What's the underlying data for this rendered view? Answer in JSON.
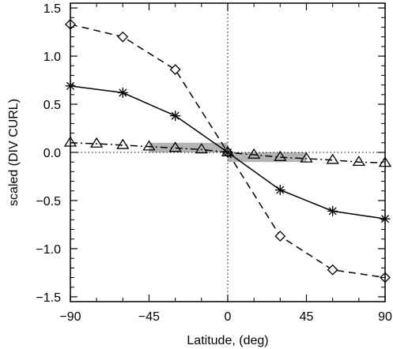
{
  "chart_data": {
    "type": "line",
    "title": "",
    "xlabel": "Latitude, (deg)",
    "ylabel": "scaled (DIV CURL)",
    "xlim": [
      -90,
      90
    ],
    "ylim": [
      -1.55,
      1.55
    ],
    "xticks": [
      -90,
      -45,
      0,
      45,
      90
    ],
    "xtick_labels": [
      "−90",
      "−45",
      "0",
      "45",
      "90"
    ],
    "yticks": [
      -1.5,
      -1.0,
      -0.5,
      0.0,
      0.5,
      1.0,
      1.5
    ],
    "ytick_labels": [
      "−1.5",
      "−1.0",
      "−0.5",
      "0.0",
      "0.5",
      "1.0",
      "1.5"
    ],
    "reference_lines": {
      "y": 0.0,
      "x": 0.0,
      "style": "dotted"
    },
    "shaded_band": {
      "color": "#b4b4b4",
      "segments": [
        {
          "x": [
            -45,
            0
          ],
          "y": [
            0.0,
            0.1
          ]
        },
        {
          "x": [
            0,
            45
          ],
          "y": [
            -0.1,
            0.0
          ]
        }
      ]
    },
    "legend": "none",
    "grid": false,
    "series": [
      {
        "line": "dashed",
        "marker": "diamond",
        "x": [
          -90,
          -60,
          -30,
          0,
          30,
          60,
          90
        ],
        "y": [
          1.33,
          1.2,
          0.86,
          0.0,
          -0.87,
          -1.22,
          -1.3
        ]
      },
      {
        "line": "solid",
        "marker": "asterisk",
        "x": [
          -90,
          -60,
          -30,
          0,
          30,
          60,
          90
        ],
        "y": [
          0.69,
          0.62,
          0.38,
          0.0,
          -0.39,
          -0.61,
          -0.69
        ]
      },
      {
        "line": "dash-dot",
        "marker": "triangle",
        "x": [
          -90,
          -75,
          -60,
          -45,
          -30,
          -15,
          0,
          15,
          30,
          45,
          60,
          75,
          90
        ],
        "y": [
          0.1,
          0.09,
          0.075,
          0.06,
          0.045,
          0.03,
          0.0,
          -0.025,
          -0.05,
          -0.065,
          -0.08,
          -0.1,
          -0.11
        ]
      }
    ]
  }
}
